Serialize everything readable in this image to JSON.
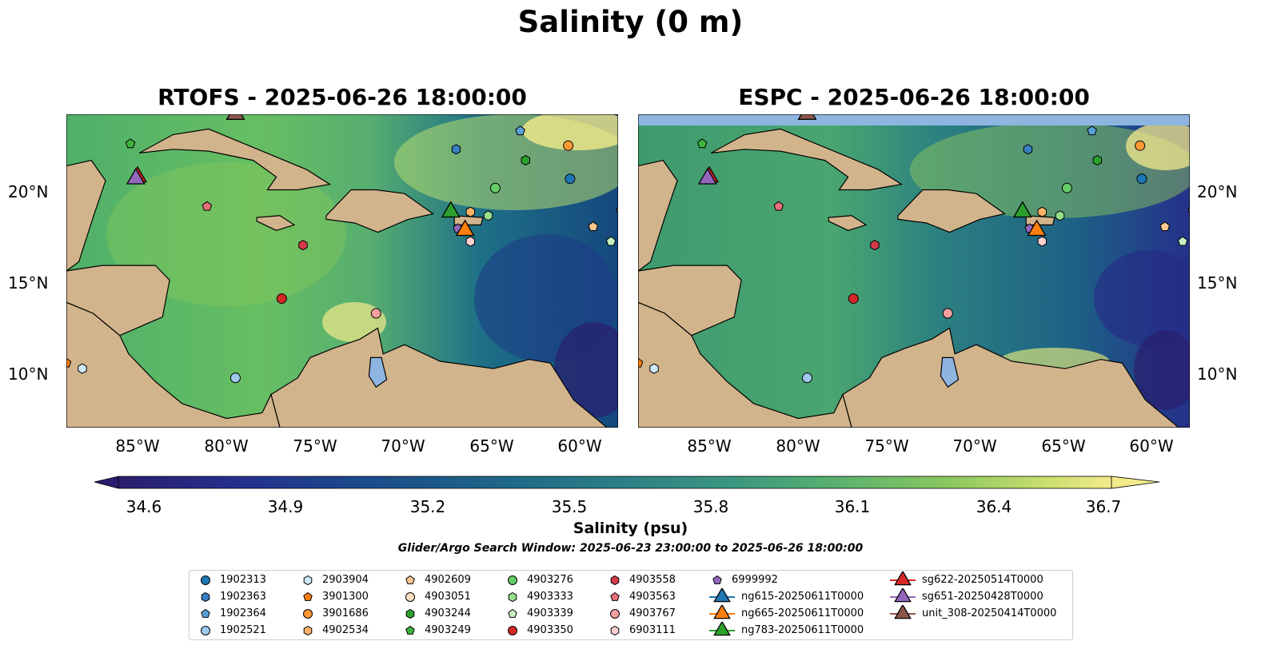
{
  "figure": {
    "title": "Salinity (0 m)",
    "panels": [
      {
        "title": "RTOFS - 2025-06-26 18:00:00"
      },
      {
        "title": "ESPC - 2025-06-26 18:00:00"
      }
    ],
    "lat_labels": [
      "20°N",
      "15°N",
      "10°N"
    ],
    "lon_labels": [
      "85°W",
      "80°W",
      "75°W",
      "70°W",
      "65°W",
      "60°W"
    ],
    "extent": {
      "lon": [
        -89,
        -58
      ],
      "lat": [
        7,
        24
      ]
    },
    "colorbar": {
      "label": "Salinity (psu)",
      "ticks": [
        "34.6",
        "34.9",
        "35.2",
        "35.5",
        "35.8",
        "36.1",
        "36.4",
        "36.7"
      ],
      "range": [
        34.6,
        36.7
      ],
      "colormap": "haline",
      "low_color": "#2a1e6e",
      "high_color": "#f3ea8b"
    },
    "subtitle": "Glider/Argo Search Window: 2025-06-23 23:00:00 to 2025-06-26 18:00:00",
    "land_color": "#d2b48c",
    "ocean_missing_color": "#8eb5e0"
  },
  "legend": {
    "items": [
      {
        "label": "1902313",
        "marker": "circle",
        "color": "#1f77b4"
      },
      {
        "label": "1902363",
        "marker": "hexagon",
        "color": "#3a7fc0"
      },
      {
        "label": "1902364",
        "marker": "pentagon",
        "color": "#5aa0d8"
      },
      {
        "label": "1902521",
        "marker": "circle",
        "color": "#9ec8ec"
      },
      {
        "label": "2903904",
        "marker": "hexagon",
        "color": "#cfe8f8"
      },
      {
        "label": "3901300",
        "marker": "pentagon",
        "color": "#ff7f0e"
      },
      {
        "label": "3901686",
        "marker": "circle",
        "color": "#ff9933"
      },
      {
        "label": "4902534",
        "marker": "hexagon",
        "color": "#ffb366"
      },
      {
        "label": "4902609",
        "marker": "pentagon",
        "color": "#ffc890"
      },
      {
        "label": "4903051",
        "marker": "circle",
        "color": "#ffe0c0"
      },
      {
        "label": "4903244",
        "marker": "hexagon",
        "color": "#2ca02c"
      },
      {
        "label": "4903249",
        "marker": "pentagon",
        "color": "#3cb33c"
      },
      {
        "label": "4903276",
        "marker": "circle",
        "color": "#66cc66"
      },
      {
        "label": "4903333",
        "marker": "hexagon",
        "color": "#98df8a"
      },
      {
        "label": "4903339",
        "marker": "pentagon",
        "color": "#c8f0c0"
      },
      {
        "label": "4903350",
        "marker": "circle",
        "color": "#d62728"
      },
      {
        "label": "4903558",
        "marker": "hexagon",
        "color": "#d43a4a"
      },
      {
        "label": "4903563",
        "marker": "pentagon",
        "color": "#e8707a"
      },
      {
        "label": "4903767",
        "marker": "circle",
        "color": "#f4a0a0"
      },
      {
        "label": "6903111",
        "marker": "hexagon",
        "color": "#fcd0d0"
      },
      {
        "label": "6999992",
        "marker": "pentagon",
        "color": "#9467bd"
      },
      {
        "label": "ng615-20250611T0000",
        "marker": "triangle",
        "color": "#1f77b4"
      },
      {
        "label": "ng665-20250611T0000",
        "marker": "triangle",
        "color": "#ff7f0e"
      },
      {
        "label": "ng783-20250611T0000",
        "marker": "triangle",
        "color": "#2ca02c"
      },
      {
        "label": "sg622-20250514T0000",
        "marker": "triangle",
        "color": "#d62728"
      },
      {
        "label": "sg651-20250428T0000",
        "marker": "triangle",
        "color": "#9467bd"
      },
      {
        "label": "unit_308-20250414T0000",
        "marker": "triangle",
        "color": "#8c564b"
      }
    ]
  },
  "markers": [
    {
      "id": "1902313",
      "lon": -60.7,
      "lat": 20.5
    },
    {
      "id": "1902363",
      "lon": -67.1,
      "lat": 22.1
    },
    {
      "id": "1902364",
      "lon": -63.5,
      "lat": 23.1
    },
    {
      "id": "1902521",
      "lon": -79.5,
      "lat": 9.7
    },
    {
      "id": "2903904",
      "lon": -88.1,
      "lat": 10.2
    },
    {
      "id": "3901300",
      "lon": -89.0,
      "lat": 10.5
    },
    {
      "id": "3901686",
      "lon": -60.8,
      "lat": 22.3
    },
    {
      "id": "4902534",
      "lon": -66.3,
      "lat": 18.7
    },
    {
      "id": "4902609",
      "lon": -59.4,
      "lat": 17.9
    },
    {
      "id": "4903051",
      "lon": -57.8,
      "lat": 18.8
    },
    {
      "id": "4903244",
      "lon": -63.2,
      "lat": 21.5
    },
    {
      "id": "4903249",
      "lon": -85.4,
      "lat": 22.4
    },
    {
      "id": "4903276",
      "lon": -64.9,
      "lat": 20.0
    },
    {
      "id": "4903333",
      "lon": -65.3,
      "lat": 18.5
    },
    {
      "id": "4903339",
      "lon": -58.4,
      "lat": 17.1
    },
    {
      "id": "4903350",
      "lon": -76.9,
      "lat": 14.0
    },
    {
      "id": "4903558",
      "lon": -75.7,
      "lat": 16.9
    },
    {
      "id": "4903563",
      "lon": -81.1,
      "lat": 19.0
    },
    {
      "id": "4903767",
      "lon": -71.6,
      "lat": 13.2
    },
    {
      "id": "6903111",
      "lon": -66.3,
      "lat": 17.1
    },
    {
      "id": "6999992",
      "lon": -67.0,
      "lat": 17.8
    },
    {
      "id": "ng665-20250611T0000",
      "lon": -66.6,
      "lat": 17.7
    },
    {
      "id": "ng783-20250611T0000",
      "lon": -67.4,
      "lat": 18.7
    },
    {
      "id": "sg622-20250514T0000",
      "lon": -85.0,
      "lat": 20.6
    },
    {
      "id": "sg651-20250428T0000",
      "lon": -85.1,
      "lat": 20.5
    },
    {
      "id": "unit_308-20250414T0000",
      "lon": -79.5,
      "lat": 24.0
    }
  ]
}
